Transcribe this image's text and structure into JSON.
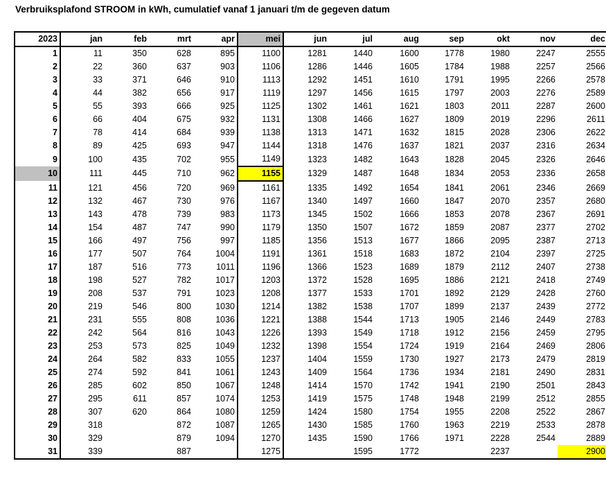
{
  "title": "Verbruiksplafond STROOM in kWh, cumulatief vanaf 1 januari t/m de gegeven datum",
  "year": "2023",
  "months": [
    "jan",
    "feb",
    "mrt",
    "apr",
    "mei",
    "jun",
    "jul",
    "aug",
    "sep",
    "okt",
    "nov",
    "dec"
  ],
  "highlight": {
    "selected_month": "mei",
    "selected_day": "10",
    "current_value": "1155",
    "year_end_value": "2900"
  },
  "colors": {
    "highlight_yellow": "#ffff00",
    "selection_gray": "#c0c0c0"
  },
  "rows": [
    {
      "day": "1",
      "values": [
        "11",
        "350",
        "628",
        "895",
        "1100",
        "1281",
        "1440",
        "1600",
        "1778",
        "1980",
        "2247",
        "2555"
      ]
    },
    {
      "day": "2",
      "values": [
        "22",
        "360",
        "637",
        "903",
        "1106",
        "1286",
        "1446",
        "1605",
        "1784",
        "1988",
        "2257",
        "2566"
      ]
    },
    {
      "day": "3",
      "values": [
        "33",
        "371",
        "646",
        "910",
        "1113",
        "1292",
        "1451",
        "1610",
        "1791",
        "1995",
        "2266",
        "2578"
      ]
    },
    {
      "day": "4",
      "values": [
        "44",
        "382",
        "656",
        "917",
        "1119",
        "1297",
        "1456",
        "1615",
        "1797",
        "2003",
        "2276",
        "2589"
      ]
    },
    {
      "day": "5",
      "values": [
        "55",
        "393",
        "666",
        "925",
        "1125",
        "1302",
        "1461",
        "1621",
        "1803",
        "2011",
        "2287",
        "2600"
      ]
    },
    {
      "day": "6",
      "values": [
        "66",
        "404",
        "675",
        "932",
        "1131",
        "1308",
        "1466",
        "1627",
        "1809",
        "2019",
        "2296",
        "2611"
      ]
    },
    {
      "day": "7",
      "values": [
        "78",
        "414",
        "684",
        "939",
        "1138",
        "1313",
        "1471",
        "1632",
        "1815",
        "2028",
        "2306",
        "2622"
      ]
    },
    {
      "day": "8",
      "values": [
        "89",
        "425",
        "693",
        "947",
        "1144",
        "1318",
        "1476",
        "1637",
        "1821",
        "2037",
        "2316",
        "2634"
      ]
    },
    {
      "day": "9",
      "values": [
        "100",
        "435",
        "702",
        "955",
        "1149",
        "1323",
        "1482",
        "1643",
        "1828",
        "2045",
        "2326",
        "2646"
      ]
    },
    {
      "day": "10",
      "values": [
        "111",
        "445",
        "710",
        "962",
        "1155",
        "1329",
        "1487",
        "1648",
        "1834",
        "2053",
        "2336",
        "2658"
      ]
    },
    {
      "day": "11",
      "values": [
        "121",
        "456",
        "720",
        "969",
        "1161",
        "1335",
        "1492",
        "1654",
        "1841",
        "2061",
        "2346",
        "2669"
      ]
    },
    {
      "day": "12",
      "values": [
        "132",
        "467",
        "730",
        "976",
        "1167",
        "1340",
        "1497",
        "1660",
        "1847",
        "2070",
        "2357",
        "2680"
      ]
    },
    {
      "day": "13",
      "values": [
        "143",
        "478",
        "739",
        "983",
        "1173",
        "1345",
        "1502",
        "1666",
        "1853",
        "2078",
        "2367",
        "2691"
      ]
    },
    {
      "day": "14",
      "values": [
        "154",
        "487",
        "747",
        "990",
        "1179",
        "1350",
        "1507",
        "1672",
        "1859",
        "2087",
        "2377",
        "2702"
      ]
    },
    {
      "day": "15",
      "values": [
        "166",
        "497",
        "756",
        "997",
        "1185",
        "1356",
        "1513",
        "1677",
        "1866",
        "2095",
        "2387",
        "2713"
      ]
    },
    {
      "day": "16",
      "values": [
        "177",
        "507",
        "764",
        "1004",
        "1191",
        "1361",
        "1518",
        "1683",
        "1872",
        "2104",
        "2397",
        "2725"
      ]
    },
    {
      "day": "17",
      "values": [
        "187",
        "516",
        "773",
        "1011",
        "1196",
        "1366",
        "1523",
        "1689",
        "1879",
        "2112",
        "2407",
        "2738"
      ]
    },
    {
      "day": "18",
      "values": [
        "198",
        "527",
        "782",
        "1017",
        "1203",
        "1372",
        "1528",
        "1695",
        "1886",
        "2121",
        "2418",
        "2749"
      ]
    },
    {
      "day": "19",
      "values": [
        "208",
        "537",
        "791",
        "1023",
        "1208",
        "1377",
        "1533",
        "1701",
        "1892",
        "2129",
        "2428",
        "2760"
      ]
    },
    {
      "day": "20",
      "values": [
        "219",
        "546",
        "800",
        "1030",
        "1214",
        "1382",
        "1538",
        "1707",
        "1899",
        "2137",
        "2439",
        "2772"
      ]
    },
    {
      "day": "21",
      "values": [
        "231",
        "555",
        "808",
        "1036",
        "1221",
        "1388",
        "1544",
        "1713",
        "1905",
        "2146",
        "2449",
        "2783"
      ]
    },
    {
      "day": "22",
      "values": [
        "242",
        "564",
        "816",
        "1043",
        "1226",
        "1393",
        "1549",
        "1718",
        "1912",
        "2156",
        "2459",
        "2795"
      ]
    },
    {
      "day": "23",
      "values": [
        "253",
        "573",
        "825",
        "1049",
        "1232",
        "1398",
        "1554",
        "1724",
        "1919",
        "2164",
        "2469",
        "2806"
      ]
    },
    {
      "day": "24",
      "values": [
        "264",
        "582",
        "833",
        "1055",
        "1237",
        "1404",
        "1559",
        "1730",
        "1927",
        "2173",
        "2479",
        "2819"
      ]
    },
    {
      "day": "25",
      "values": [
        "274",
        "592",
        "841",
        "1061",
        "1243",
        "1409",
        "1564",
        "1736",
        "1934",
        "2181",
        "2490",
        "2831"
      ]
    },
    {
      "day": "26",
      "values": [
        "285",
        "602",
        "850",
        "1067",
        "1248",
        "1414",
        "1570",
        "1742",
        "1941",
        "2190",
        "2501",
        "2843"
      ]
    },
    {
      "day": "27",
      "values": [
        "295",
        "611",
        "857",
        "1074",
        "1253",
        "1419",
        "1575",
        "1748",
        "1948",
        "2199",
        "2512",
        "2855"
      ]
    },
    {
      "day": "28",
      "values": [
        "307",
        "620",
        "864",
        "1080",
        "1259",
        "1424",
        "1580",
        "1754",
        "1955",
        "2208",
        "2522",
        "2867"
      ]
    },
    {
      "day": "29",
      "values": [
        "318",
        "",
        "872",
        "1087",
        "1265",
        "1430",
        "1585",
        "1760",
        "1963",
        "2219",
        "2533",
        "2878"
      ]
    },
    {
      "day": "30",
      "values": [
        "329",
        "",
        "879",
        "1094",
        "1270",
        "1435",
        "1590",
        "1766",
        "1971",
        "2228",
        "2544",
        "2889"
      ]
    },
    {
      "day": "31",
      "values": [
        "339",
        "",
        "887",
        "",
        "1275",
        "",
        "1595",
        "1772",
        "",
        "2237",
        "",
        "2900"
      ]
    }
  ]
}
